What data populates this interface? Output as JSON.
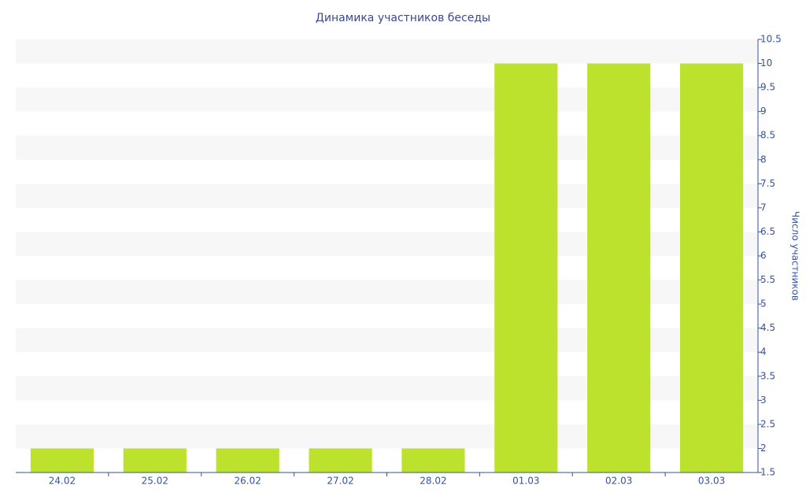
{
  "chart_data": {
    "type": "bar",
    "title": "Динамика участников беседы",
    "y_label": "Число участников",
    "categories": [
      "24.02",
      "25.02",
      "26.02",
      "27.02",
      "28.02",
      "01.03",
      "02.03",
      "03.03"
    ],
    "values": [
      2,
      2,
      2,
      2,
      2,
      10,
      10,
      10
    ],
    "color": "#bde22e",
    "ylim": [
      1.5,
      10.5
    ],
    "yticks": [
      1.5,
      2,
      2.5,
      3,
      3.5,
      4,
      4.5,
      5,
      5.5,
      6,
      6.5,
      7,
      7.5,
      8,
      8.5,
      9,
      9.5,
      10,
      10.5
    ],
    "grid": true
  }
}
